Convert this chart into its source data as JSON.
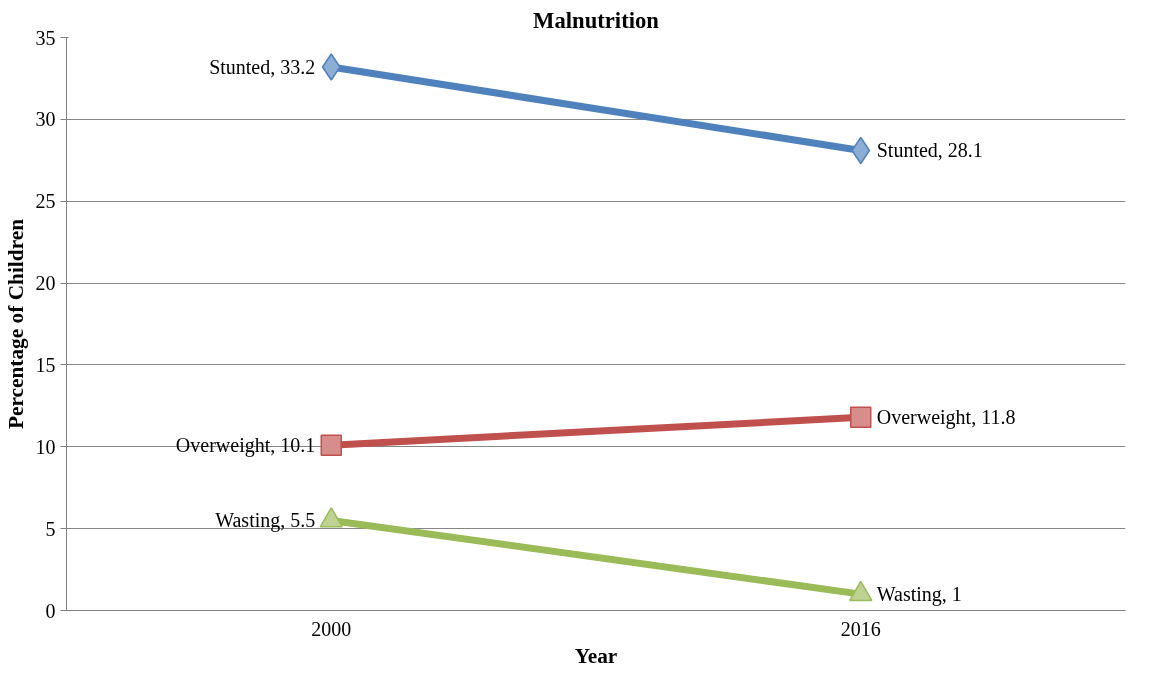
{
  "chart_data": {
    "type": "line",
    "title": "Malnutrition",
    "xlabel": "Year",
    "ylabel": "Percentage of Children",
    "categories": [
      "2000",
      "2016"
    ],
    "ylim": [
      0,
      35
    ],
    "yticks": [
      0,
      5,
      10,
      15,
      20,
      25,
      30,
      35
    ],
    "grid": "y",
    "series": [
      {
        "color": "#4f81bd",
        "marker": "diamond",
        "values": [
          33.2,
          28.1
        ],
        "value_labels": [
          "Stunted, 33.2",
          "Stunted, 28.1"
        ]
      },
      {
        "color": "#c0504d",
        "marker": "square",
        "values": [
          10.1,
          11.8
        ],
        "value_labels": [
          "Overweight, 10.1",
          "Overweight, 11.8"
        ]
      },
      {
        "color": "#9bbb59",
        "marker": "triangle",
        "values": [
          5.5,
          1
        ],
        "value_labels": [
          "Wasting, 5.5",
          "Wasting, 1"
        ]
      }
    ]
  }
}
